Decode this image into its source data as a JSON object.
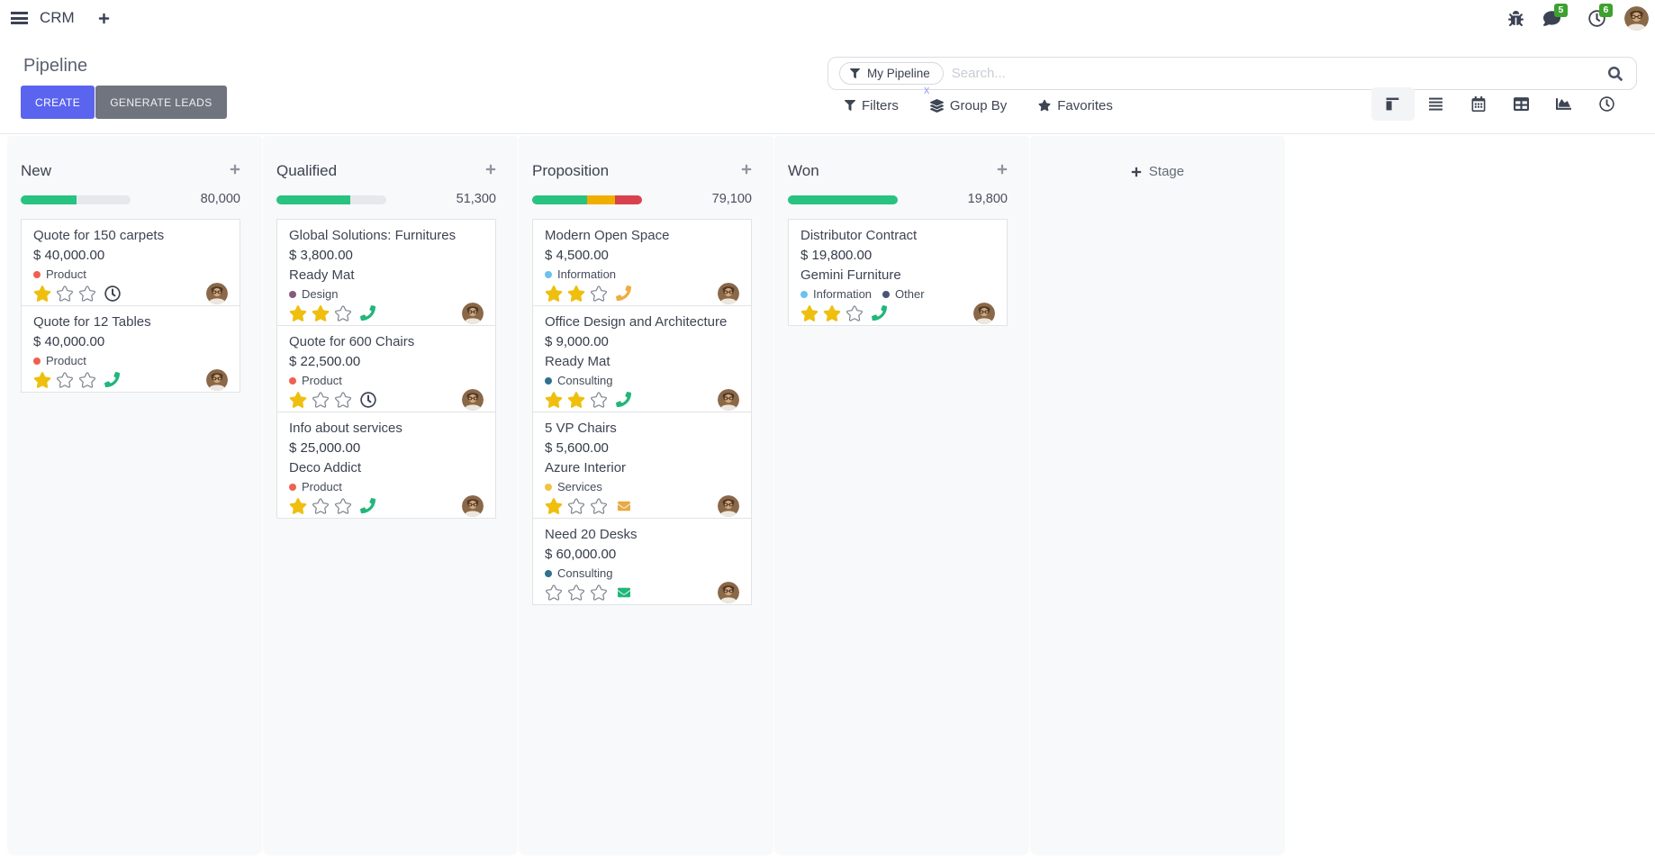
{
  "palette": {
    "primary": "#5b64ee",
    "secondary": "#70747e",
    "success": "#28c381",
    "warning": "#f0ae00",
    "danger": "#d8424e",
    "star_gold": "#efbf0e",
    "badge_green": "#3da12f"
  },
  "navbar": {
    "app": "CRM",
    "messages_badge": "5",
    "activities_badge": "6"
  },
  "control_panel": {
    "title": "Pipeline",
    "buttons": {
      "create": "CREATE",
      "generate": "GENERATE LEADS"
    },
    "search": {
      "facet": "My Pipeline",
      "placeholder": "Search...",
      "remove_facet": "x"
    },
    "menus": {
      "filters": "Filters",
      "group_by": "Group By",
      "favorites": "Favorites"
    }
  },
  "kanban": {
    "add_stage_label": "Stage",
    "columns": [
      {
        "name": "New",
        "amount": "80,000",
        "progress": [
          {
            "color": "#28c381",
            "pct": 51
          }
        ],
        "cards": [
          {
            "title": "Quote for 150 carpets",
            "amount": "$ 40,000.00",
            "tags": [
              {
                "label": "Product",
                "color": "#f06050"
              }
            ],
            "stars": 1,
            "activity": {
              "type": "clock",
              "color": "#3e4553"
            }
          },
          {
            "title": "Quote for 12 Tables",
            "amount": "$ 40,000.00",
            "tags": [
              {
                "label": "Product",
                "color": "#f06050"
              }
            ],
            "stars": 1,
            "activity": {
              "type": "phone",
              "color": "#21b77a"
            }
          }
        ]
      },
      {
        "name": "Qualified",
        "amount": "51,300",
        "progress": [
          {
            "color": "#28c381",
            "pct": 67
          }
        ],
        "cards": [
          {
            "title": "Global Solutions: Furnitures",
            "amount": "$ 3,800.00",
            "partner": "Ready Mat",
            "tags": [
              {
                "label": "Design",
                "color": "#875a7b"
              }
            ],
            "stars": 2,
            "activity": {
              "type": "phone",
              "color": "#21b77a"
            }
          },
          {
            "title": "Quote for 600 Chairs",
            "amount": "$ 22,500.00",
            "tags": [
              {
                "label": "Product",
                "color": "#f06050"
              }
            ],
            "stars": 1,
            "activity": {
              "type": "clock",
              "color": "#3e4553"
            }
          },
          {
            "title": "Info about services",
            "amount": "$ 25,000.00",
            "partner": "Deco Addict",
            "tags": [
              {
                "label": "Product",
                "color": "#f06050"
              }
            ],
            "stars": 1,
            "activity": {
              "type": "phone",
              "color": "#21b77a"
            }
          }
        ]
      },
      {
        "name": "Proposition",
        "amount": "79,100",
        "progress": [
          {
            "color": "#28c381",
            "pct": 50
          },
          {
            "color": "#f0ae00",
            "pct": 25
          },
          {
            "color": "#d8424e",
            "pct": 25
          }
        ],
        "cards": [
          {
            "title": "Modern Open Space",
            "amount": "$ 4,500.00",
            "tags": [
              {
                "label": "Information",
                "color": "#6cc1ed"
              }
            ],
            "stars": 2,
            "activity": {
              "type": "phone",
              "color": "#eead3e"
            }
          },
          {
            "title": "Office Design and Architecture",
            "amount": "$ 9,000.00",
            "partner": "Ready Mat",
            "tags": [
              {
                "label": "Consulting",
                "color": "#31708e"
              }
            ],
            "stars": 2,
            "activity": {
              "type": "phone",
              "color": "#21b77a"
            }
          },
          {
            "title": "5 VP Chairs",
            "amount": "$ 5,600.00",
            "partner": "Azure Interior",
            "tags": [
              {
                "label": "Services",
                "color": "#efc342"
              }
            ],
            "stars": 1,
            "activity": {
              "type": "mail",
              "color": "#e9a944"
            }
          },
          {
            "title": "Need 20 Desks",
            "amount": "$ 60,000.00",
            "tags": [
              {
                "label": "Consulting",
                "color": "#31708e"
              }
            ],
            "stars": 0,
            "activity": {
              "type": "mail",
              "color": "#21b77a"
            }
          }
        ]
      },
      {
        "name": "Won",
        "amount": "19,800",
        "progress": [
          {
            "color": "#28c381",
            "pct": 100
          }
        ],
        "cards": [
          {
            "title": "Distributor Contract",
            "amount": "$ 19,800.00",
            "partner": "Gemini Furniture",
            "tags": [
              {
                "label": "Information",
                "color": "#6cc1ed"
              },
              {
                "label": "Other",
                "color": "#475577"
              }
            ],
            "stars": 2,
            "activity": {
              "type": "phone",
              "color": "#21b77a"
            }
          }
        ]
      }
    ]
  }
}
